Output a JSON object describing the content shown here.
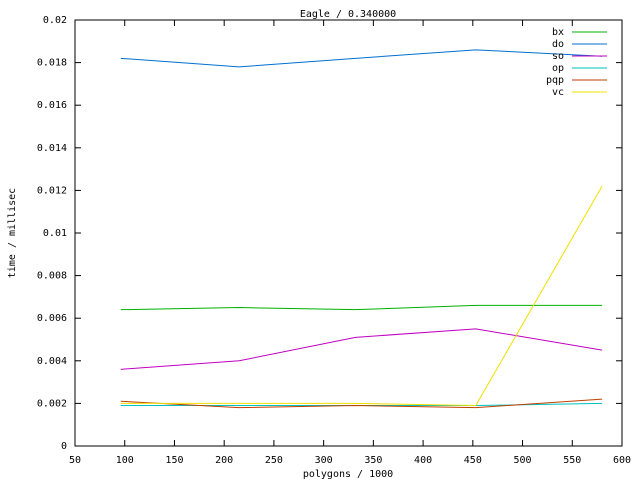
{
  "chart_data": {
    "type": "line",
    "title": "Eagle / 0.340000",
    "x_label": "polygons / 1000",
    "y_label": "time / millisec",
    "x": [
      96,
      215,
      332,
      453,
      580
    ],
    "series": [
      {
        "name": "bx",
        "color": "#00b000",
        "values": [
          0.0064,
          0.0065,
          0.0064,
          0.0066,
          0.0066
        ]
      },
      {
        "name": "do",
        "color": "#0070d0",
        "values": [
          0.0182,
          0.0178,
          0.0182,
          0.0186,
          0.0183
        ]
      },
      {
        "name": "so",
        "color": "#c000c0",
        "values": [
          0.0036,
          0.004,
          0.0051,
          0.0055,
          0.0045
        ]
      },
      {
        "name": "op",
        "color": "#00c0c0",
        "values": [
          0.0019,
          0.0019,
          0.0019,
          0.0019,
          0.002
        ]
      },
      {
        "name": "pqp",
        "color": "#c04000",
        "values": [
          0.0021,
          0.0018,
          0.0019,
          0.0018,
          0.0022
        ]
      },
      {
        "name": "vc",
        "color": "#f0e000",
        "values": [
          0.002,
          0.002,
          0.002,
          0.0019,
          0.0122
        ]
      }
    ],
    "xlim": [
      50,
      600
    ],
    "xticks": [
      50,
      100,
      150,
      200,
      250,
      300,
      350,
      400,
      450,
      500,
      550,
      600
    ],
    "ylim": [
      0,
      0.02
    ],
    "yticks": [
      0,
      0.002,
      0.004,
      0.006,
      0.008,
      0.01,
      0.012,
      0.014,
      0.016,
      0.018,
      0.02
    ],
    "grid": false,
    "legend": "top-right"
  }
}
